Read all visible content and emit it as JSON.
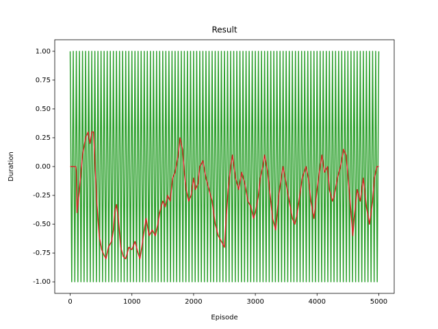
{
  "chart_data": {
    "type": "line",
    "title": "Result",
    "xlabel": "Episode",
    "ylabel": "Duration",
    "xlim": [
      -250,
      5250
    ],
    "ylim": [
      -1.1,
      1.1
    ],
    "xticks": [
      0,
      1000,
      2000,
      3000,
      4000,
      5000
    ],
    "yticks": [
      {
        "value": -1,
        "label": "-1.00"
      },
      {
        "value": -0.75,
        "label": "-0.75"
      },
      {
        "value": -0.5,
        "label": "-0.50"
      },
      {
        "value": -0.25,
        "label": "-0.25"
      },
      {
        "value": 0,
        "label": "0.00"
      },
      {
        "value": 0.25,
        "label": "0.25"
      },
      {
        "value": 0.5,
        "label": "0.50"
      },
      {
        "value": 0.75,
        "label": "0.75"
      },
      {
        "value": 1,
        "label": "1.00"
      }
    ],
    "series": [
      {
        "color": "#2ca02c",
        "x": [
          0,
          25,
          50,
          75,
          100,
          125,
          150,
          175,
          200,
          225,
          250,
          275,
          300,
          325,
          350,
          375,
          400,
          425,
          450,
          475,
          500,
          525,
          550,
          575,
          600,
          625,
          650,
          675,
          700,
          725,
          750,
          775,
          800,
          825,
          850,
          875,
          900,
          925,
          950,
          975,
          1000,
          1025,
          1050,
          1075,
          1100,
          1125,
          1150,
          1175,
          1200,
          1225,
          1250,
          1275,
          1300,
          1325,
          1350,
          1375,
          1400,
          1425,
          1450,
          1475,
          1500,
          1525,
          1550,
          1575,
          1600,
          1625,
          1650,
          1675,
          1700,
          1725,
          1750,
          1775,
          1800,
          1825,
          1850,
          1875,
          1900,
          1925,
          1950,
          1975,
          2000,
          2025,
          2050,
          2075,
          2100,
          2125,
          2150,
          2175,
          2200,
          2225,
          2250,
          2275,
          2300,
          2325,
          2350,
          2375,
          2400,
          2425,
          2450,
          2475,
          2500,
          2525,
          2550,
          2575,
          2600,
          2625,
          2650,
          2675,
          2700,
          2725,
          2750,
          2775,
          2800,
          2825,
          2850,
          2875,
          2900,
          2925,
          2950,
          2975,
          3000,
          3025,
          3050,
          3075,
          3100,
          3125,
          3150,
          3175,
          3200,
          3225,
          3250,
          3275,
          3300,
          3325,
          3350,
          3375,
          3400,
          3425,
          3450,
          3475,
          3500,
          3525,
          3550,
          3575,
          3600,
          3625,
          3650,
          3675,
          3700,
          3725,
          3750,
          3775,
          3800,
          3825,
          3850,
          3875,
          3900,
          3925,
          3950,
          3975,
          4000,
          4025,
          4050,
          4075,
          4100,
          4125,
          4150,
          4175,
          4200,
          4225,
          4250,
          4275,
          4300,
          4325,
          4350,
          4375,
          4400,
          4425,
          4450,
          4475,
          4500,
          4525,
          4550,
          4575,
          4600,
          4625,
          4650,
          4675,
          4700,
          4725,
          4750,
          4775,
          4800,
          4825,
          4850,
          4875,
          4900,
          4925,
          4950,
          4975,
          5000
        ],
        "values": [
          1,
          -1,
          1,
          -1,
          1,
          -1,
          1,
          -1,
          1,
          -1,
          1,
          -1,
          1,
          -1,
          1,
          -1,
          1,
          -1,
          1,
          -1,
          1,
          -1,
          1,
          -1,
          1,
          -1,
          1,
          -1,
          1,
          -1,
          1,
          -1,
          1,
          -1,
          1,
          -1,
          1,
          -1,
          1,
          -1,
          1,
          -1,
          1,
          -1,
          1,
          -1,
          1,
          -1,
          1,
          -1,
          1,
          -1,
          1,
          -1,
          1,
          -1,
          1,
          -1,
          1,
          -1,
          1,
          -1,
          1,
          -1,
          1,
          -1,
          1,
          -1,
          1,
          -1,
          1,
          -1,
          1,
          -1,
          1,
          -1,
          1,
          -1,
          1,
          -1,
          1,
          -1,
          1,
          -1,
          1,
          -1,
          1,
          -1,
          1,
          -1,
          1,
          -1,
          1,
          -1,
          1,
          -1,
          1,
          -1,
          1,
          -1,
          1,
          -1,
          1,
          -1,
          1,
          -1,
          1,
          -1,
          1,
          -1,
          1,
          -1,
          1,
          -1,
          1,
          -1,
          1,
          -1,
          1,
          -1,
          1,
          -1,
          1,
          -1,
          1,
          -1,
          1,
          -1,
          1,
          -1,
          1,
          -1,
          1,
          -1,
          1,
          -1,
          1,
          -1,
          1,
          -1,
          1,
          -1,
          1,
          -1,
          1,
          -1,
          1,
          -1,
          1,
          -1,
          1,
          -1,
          1,
          -1,
          1,
          -1,
          1,
          -1,
          1,
          -1,
          1,
          -1,
          1,
          -1,
          1,
          -1,
          1,
          -1,
          1,
          -1,
          1,
          -1,
          1,
          -1,
          1,
          -1,
          1,
          -1,
          1,
          -1,
          1,
          -1,
          1,
          -1,
          1,
          -1,
          1,
          -1,
          1,
          -1,
          1,
          -1,
          1,
          -1,
          1,
          -1,
          1,
          -1,
          1,
          -1,
          1
        ]
      },
      {
        "color": "#d62728",
        "x": [
          0,
          50,
          90,
          100,
          110,
          150,
          200,
          250,
          290,
          320,
          350,
          380,
          400,
          430,
          470,
          510,
          550,
          580,
          620,
          670,
          700,
          720,
          750,
          780,
          820,
          860,
          900,
          950,
          1000,
          1050,
          1100,
          1130,
          1160,
          1200,
          1230,
          1280,
          1330,
          1380,
          1420,
          1450,
          1500,
          1540,
          1580,
          1620,
          1660,
          1700,
          1750,
          1780,
          1820,
          1850,
          1880,
          1920,
          1960,
          2000,
          2030,
          2070,
          2100,
          2150,
          2200,
          2250,
          2300,
          2350,
          2400,
          2450,
          2500,
          2520,
          2560,
          2600,
          2630,
          2680,
          2730,
          2780,
          2830,
          2880,
          2930,
          2970,
          3000,
          3050,
          3080,
          3120,
          3150,
          3200,
          3250,
          3280,
          3330,
          3380,
          3420,
          3450,
          3500,
          3550,
          3600,
          3640,
          3680,
          3720,
          3760,
          3820,
          3860,
          3900,
          3950,
          4000,
          4050,
          4080,
          4120,
          4170,
          4200,
          4250,
          4280,
          4330,
          4380,
          4430,
          4470,
          4520,
          4550,
          4580,
          4600,
          4650,
          4700,
          4750,
          4800,
          4850,
          4900,
          4930,
          4970,
          5000
        ],
        "values": [
          0,
          0,
          0,
          -0.05,
          -0.4,
          -0.2,
          0.1,
          0.25,
          0.3,
          0.2,
          0.3,
          0.3,
          0.05,
          -0.3,
          -0.6,
          -0.72,
          -0.77,
          -0.8,
          -0.7,
          -0.65,
          -0.55,
          -0.4,
          -0.33,
          -0.45,
          -0.7,
          -0.78,
          -0.8,
          -0.7,
          -0.72,
          -0.65,
          -0.75,
          -0.8,
          -0.7,
          -0.55,
          -0.45,
          -0.6,
          -0.55,
          -0.6,
          -0.5,
          -0.4,
          -0.3,
          -0.35,
          -0.25,
          -0.3,
          -0.1,
          -0.05,
          0.1,
          0.25,
          0.15,
          -0.05,
          -0.2,
          -0.3,
          -0.25,
          -0.1,
          -0.2,
          -0.15,
          0,
          0.05,
          -0.1,
          -0.2,
          -0.3,
          -0.5,
          -0.6,
          -0.65,
          -0.7,
          -0.5,
          -0.2,
          0,
          0.1,
          -0.1,
          -0.2,
          -0.05,
          -0.15,
          -0.3,
          -0.35,
          -0.45,
          -0.4,
          -0.25,
          -0.1,
          0,
          0.1,
          -0.05,
          -0.3,
          -0.45,
          -0.55,
          -0.25,
          -0.1,
          0,
          -0.15,
          -0.3,
          -0.45,
          -0.5,
          -0.4,
          -0.25,
          -0.1,
          0,
          -0.1,
          -0.3,
          -0.45,
          -0.2,
          0,
          0.1,
          -0.05,
          0,
          -0.2,
          -0.3,
          -0.25,
          -0.1,
          0,
          0.15,
          0.1,
          -0.2,
          -0.4,
          -0.6,
          -0.45,
          -0.2,
          -0.3,
          -0.1,
          -0.35,
          -0.5,
          -0.3,
          -0.1,
          0,
          0
        ]
      }
    ]
  }
}
